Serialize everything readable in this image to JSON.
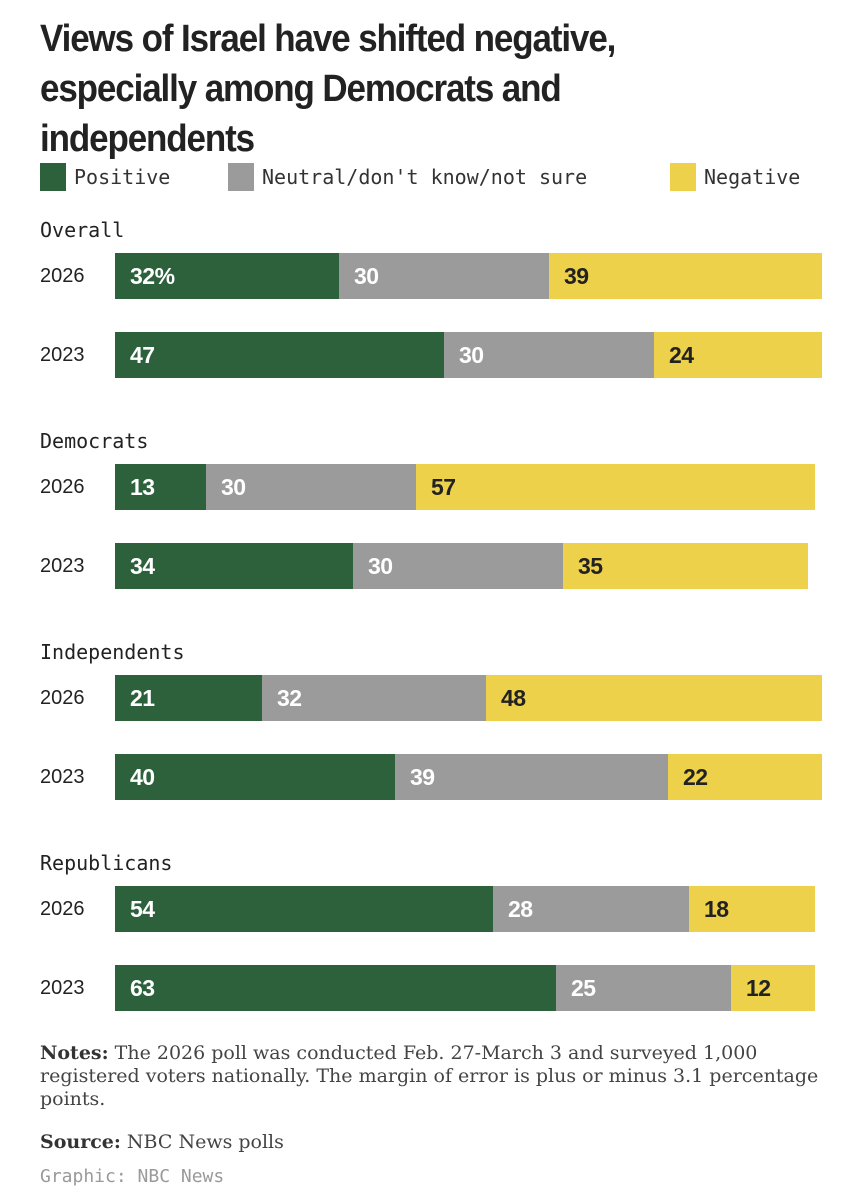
{
  "chart_data": {
    "type": "bar",
    "orientation": "horizontal",
    "stacked": true,
    "title": "Views of Israel have shifted negative, especially among Democrats and independents",
    "legend": [
      {
        "key": "positive",
        "label": "Positive",
        "color": "#2c613b"
      },
      {
        "key": "neutral",
        "label": "Neutral/don't know/not sure",
        "color": "#9b9b9b"
      },
      {
        "key": "negative",
        "label": "Negative",
        "color": "#eed14a"
      }
    ],
    "groups": [
      {
        "name": "Overall",
        "rows": [
          {
            "year": "2026",
            "positive": 32,
            "neutral": 30,
            "negative": 39,
            "first_label": "32%"
          },
          {
            "year": "2023",
            "positive": 47,
            "neutral": 30,
            "negative": 24,
            "first_label": "47"
          }
        ]
      },
      {
        "name": "Democrats",
        "rows": [
          {
            "year": "2026",
            "positive": 13,
            "neutral": 30,
            "negative": 57,
            "first_label": "13"
          },
          {
            "year": "2023",
            "positive": 34,
            "neutral": 30,
            "negative": 35,
            "first_label": "34"
          }
        ]
      },
      {
        "name": "Independents",
        "rows": [
          {
            "year": "2026",
            "positive": 21,
            "neutral": 32,
            "negative": 48,
            "first_label": "21"
          },
          {
            "year": "2023",
            "positive": 40,
            "neutral": 39,
            "negative": 22,
            "first_label": "40"
          }
        ]
      },
      {
        "name": "Republicans",
        "rows": [
          {
            "year": "2026",
            "positive": 54,
            "neutral": 28,
            "negative": 18,
            "first_label": "54"
          },
          {
            "year": "2023",
            "positive": 63,
            "neutral": 25,
            "negative": 12,
            "first_label": "63"
          }
        ]
      }
    ]
  },
  "notes": {
    "label": "Notes:",
    "text": " The 2026 poll was conducted Feb. 27-March 3 and surveyed 1,000 registered voters nationally. The margin of error is plus or minus 3.1 percentage points."
  },
  "source": {
    "label": "Source:",
    "text": " NBC News polls"
  },
  "credit": "Graphic: NBC News"
}
